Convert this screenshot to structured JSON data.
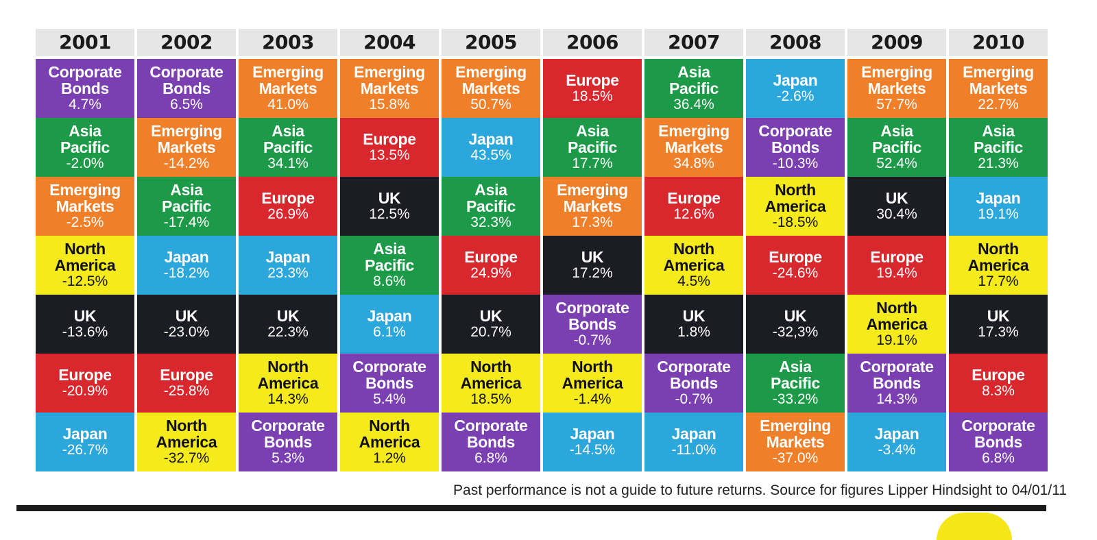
{
  "chart_data": {
    "type": "table",
    "title": "",
    "footnote": "Past performance is not a guide to future returns. Source for figures Lipper Hindsight to 04/01/11",
    "colors": {
      "Corporate Bonds": "#7a3fb0",
      "Emerging Markets": "#f07f2a",
      "Asia Pacific": "#1c9a48",
      "Europe": "#d9272e",
      "Japan": "#2ba7dc",
      "North America": "#f5ea1b",
      "UK": "#1c1c24"
    },
    "text_colors": {
      "Corporate Bonds": "#ffffff",
      "Emerging Markets": "#ffffff",
      "Asia Pacific": "#ffffff",
      "Europe": "#ffffff",
      "Japan": "#ffffff",
      "North America": "#111111",
      "UK": "#ffffff"
    },
    "columns": [
      {
        "year": "2001",
        "cells": [
          {
            "region": "Corporate Bonds",
            "line1": "Corporate",
            "line2": "Bonds",
            "value": "4.7%"
          },
          {
            "region": "Asia Pacific",
            "line1": "Asia",
            "line2": "Pacific",
            "value": "-2.0%"
          },
          {
            "region": "Emerging Markets",
            "line1": "Emerging",
            "line2": "Markets",
            "value": "-2.5%"
          },
          {
            "region": "North America",
            "line1": "North",
            "line2": "America",
            "value": "-12.5%"
          },
          {
            "region": "UK",
            "line1": "UK",
            "line2": "",
            "value": "-13.6%"
          },
          {
            "region": "Europe",
            "line1": "Europe",
            "line2": "",
            "value": "-20.9%"
          },
          {
            "region": "Japan",
            "line1": "Japan",
            "line2": "",
            "value": "-26.7%"
          }
        ]
      },
      {
        "year": "2002",
        "cells": [
          {
            "region": "Corporate Bonds",
            "line1": "Corporate",
            "line2": "Bonds",
            "value": "6.5%"
          },
          {
            "region": "Emerging Markets",
            "line1": "Emerging",
            "line2": "Markets",
            "value": "-14.2%"
          },
          {
            "region": "Asia Pacific",
            "line1": "Asia",
            "line2": "Pacific",
            "value": "-17.4%"
          },
          {
            "region": "Japan",
            "line1": "Japan",
            "line2": "",
            "value": "-18.2%"
          },
          {
            "region": "UK",
            "line1": "UK",
            "line2": "",
            "value": "-23.0%"
          },
          {
            "region": "Europe",
            "line1": "Europe",
            "line2": "",
            "value": "-25.8%"
          },
          {
            "region": "North America",
            "line1": "North",
            "line2": "America",
            "value": "-32.7%"
          }
        ]
      },
      {
        "year": "2003",
        "cells": [
          {
            "region": "Emerging Markets",
            "line1": "Emerging",
            "line2": "Markets",
            "value": "41.0%"
          },
          {
            "region": "Asia Pacific",
            "line1": "Asia",
            "line2": "Pacific",
            "value": "34.1%"
          },
          {
            "region": "Europe",
            "line1": "Europe",
            "line2": "",
            "value": "26.9%"
          },
          {
            "region": "Japan",
            "line1": "Japan",
            "line2": "",
            "value": "23.3%"
          },
          {
            "region": "UK",
            "line1": "UK",
            "line2": "",
            "value": "22.3%"
          },
          {
            "region": "North America",
            "line1": "North",
            "line2": "America",
            "value": "14.3%"
          },
          {
            "region": "Corporate Bonds",
            "line1": "Corporate",
            "line2": "Bonds",
            "value": "5.3%"
          }
        ]
      },
      {
        "year": "2004",
        "cells": [
          {
            "region": "Emerging Markets",
            "line1": "Emerging",
            "line2": "Markets",
            "value": "15.8%"
          },
          {
            "region": "Europe",
            "line1": "Europe",
            "line2": "",
            "value": "13.5%"
          },
          {
            "region": "UK",
            "line1": "UK",
            "line2": "",
            "value": "12.5%"
          },
          {
            "region": "Asia Pacific",
            "line1": "Asia",
            "line2": "Pacific",
            "value": "8.6%"
          },
          {
            "region": "Japan",
            "line1": "Japan",
            "line2": "",
            "value": "6.1%"
          },
          {
            "region": "Corporate Bonds",
            "line1": "Corporate",
            "line2": "Bonds",
            "value": "5.4%"
          },
          {
            "region": "North America",
            "line1": "North",
            "line2": "America",
            "value": "1.2%"
          }
        ]
      },
      {
        "year": "2005",
        "cells": [
          {
            "region": "Emerging Markets",
            "line1": "Emerging",
            "line2": "Markets",
            "value": "50.7%"
          },
          {
            "region": "Japan",
            "line1": "Japan",
            "line2": "",
            "value": "43.5%"
          },
          {
            "region": "Asia Pacific",
            "line1": "Asia",
            "line2": "Pacific",
            "value": "32.3%"
          },
          {
            "region": "Europe",
            "line1": "Europe",
            "line2": "",
            "value": "24.9%"
          },
          {
            "region": "UK",
            "line1": "UK",
            "line2": "",
            "value": "20.7%"
          },
          {
            "region": "North America",
            "line1": "North",
            "line2": "America",
            "value": "18.5%"
          },
          {
            "region": "Corporate Bonds",
            "line1": "Corporate",
            "line2": "Bonds",
            "value": "6.8%"
          }
        ]
      },
      {
        "year": "2006",
        "cells": [
          {
            "region": "Europe",
            "line1": "Europe",
            "line2": "",
            "value": "18.5%"
          },
          {
            "region": "Asia Pacific",
            "line1": "Asia",
            "line2": "Pacific",
            "value": "17.7%"
          },
          {
            "region": "Emerging Markets",
            "line1": "Emerging",
            "line2": "Markets",
            "value": "17.3%"
          },
          {
            "region": "UK",
            "line1": "UK",
            "line2": "",
            "value": "17.2%"
          },
          {
            "region": "Corporate Bonds",
            "line1": "Corporate",
            "line2": "Bonds",
            "value": "-0.7%"
          },
          {
            "region": "North America",
            "line1": "North",
            "line2": "America",
            "value": "-1.4%"
          },
          {
            "region": "Japan",
            "line1": "Japan",
            "line2": "",
            "value": "-14.5%"
          }
        ]
      },
      {
        "year": "2007",
        "cells": [
          {
            "region": "Asia Pacific",
            "line1": "Asia",
            "line2": "Pacific",
            "value": "36.4%"
          },
          {
            "region": "Emerging Markets",
            "line1": "Emerging",
            "line2": "Markets",
            "value": "34.8%"
          },
          {
            "region": "Europe",
            "line1": "Europe",
            "line2": "",
            "value": "12.6%"
          },
          {
            "region": "North America",
            "line1": "North",
            "line2": "America",
            "value": "4.5%"
          },
          {
            "region": "UK",
            "line1": "UK",
            "line2": "",
            "value": "1.8%"
          },
          {
            "region": "Corporate Bonds",
            "line1": "Corporate",
            "line2": "Bonds",
            "value": "-0.7%"
          },
          {
            "region": "Japan",
            "line1": "Japan",
            "line2": "",
            "value": "-11.0%"
          }
        ]
      },
      {
        "year": "2008",
        "cells": [
          {
            "region": "Japan",
            "line1": "Japan",
            "line2": "",
            "value": "-2.6%"
          },
          {
            "region": "Corporate Bonds",
            "line1": "Corporate",
            "line2": "Bonds",
            "value": "-10.3%"
          },
          {
            "region": "North America",
            "line1": "North",
            "line2": "America",
            "value": "-18.5%"
          },
          {
            "region": "Europe",
            "line1": "Europe",
            "line2": "",
            "value": "-24.6%"
          },
          {
            "region": "UK",
            "line1": "UK",
            "line2": "",
            "value": "-32,3%"
          },
          {
            "region": "Asia Pacific",
            "line1": "Asia",
            "line2": "Pacific",
            "value": "-33.2%"
          },
          {
            "region": "Emerging Markets",
            "line1": "Emerging",
            "line2": "Markets",
            "value": "-37.0%"
          }
        ]
      },
      {
        "year": "2009",
        "cells": [
          {
            "region": "Emerging Markets",
            "line1": "Emerging",
            "line2": "Markets",
            "value": "57.7%"
          },
          {
            "region": "Asia Pacific",
            "line1": "Asia",
            "line2": "Pacific",
            "value": "52.4%"
          },
          {
            "region": "UK",
            "line1": "UK",
            "line2": "",
            "value": "30.4%"
          },
          {
            "region": "Europe",
            "line1": "Europe",
            "line2": "",
            "value": "19.4%"
          },
          {
            "region": "North America",
            "line1": "North",
            "line2": "America",
            "value": "19.1%"
          },
          {
            "region": "Corporate Bonds",
            "line1": "Corporate",
            "line2": "Bonds",
            "value": "14.3%"
          },
          {
            "region": "Japan",
            "line1": "Japan",
            "line2": "",
            "value": "-3.4%"
          }
        ]
      },
      {
        "year": "2010",
        "cells": [
          {
            "region": "Emerging Markets",
            "line1": "Emerging",
            "line2": "Markets",
            "value": "22.7%"
          },
          {
            "region": "Asia Pacific",
            "line1": "Asia",
            "line2": "Pacific",
            "value": "21.3%"
          },
          {
            "region": "Japan",
            "line1": "Japan",
            "line2": "",
            "value": "19.1%"
          },
          {
            "region": "North America",
            "line1": "North",
            "line2": "America",
            "value": "17.7%"
          },
          {
            "region": "UK",
            "line1": "UK",
            "line2": "",
            "value": "17.3%"
          },
          {
            "region": "Europe",
            "line1": "Europe",
            "line2": "",
            "value": "8.3%"
          },
          {
            "region": "Corporate Bonds",
            "line1": "Corporate",
            "line2": "Bonds",
            "value": "6.8%"
          }
        ]
      }
    ]
  }
}
